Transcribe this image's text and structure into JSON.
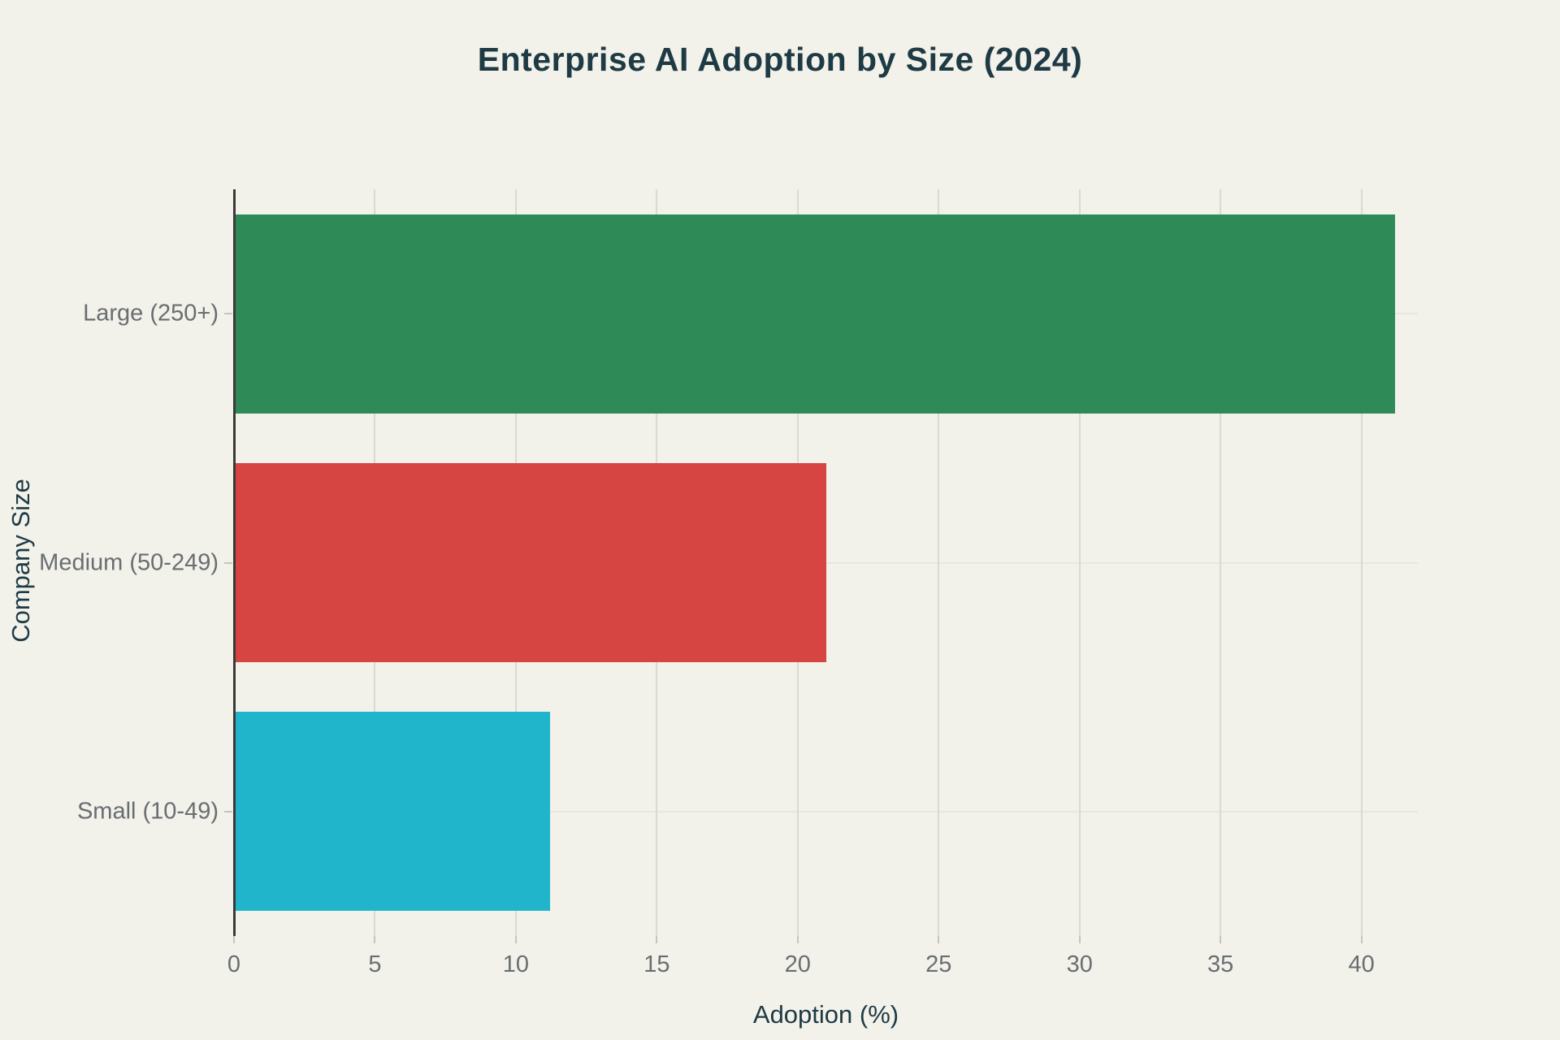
{
  "title": "Enterprise AI Adoption by Size (2024)",
  "chart_data": {
    "type": "bar",
    "orientation": "horizontal",
    "title": "Enterprise AI Adoption by Size (2024)",
    "categories": [
      "Large (250+)",
      "Medium (50-249)",
      "Small (10-49)"
    ],
    "values": [
      41.2,
      21,
      11.2
    ],
    "xlabel": "Adoption (%)",
    "ylabel": "Company Size",
    "xlim": [
      0,
      42
    ],
    "xticks": [
      0,
      5,
      10,
      15,
      20,
      25,
      30,
      35,
      40
    ],
    "grid": true,
    "legend": false,
    "bar_colors": [
      "#2e8b57",
      "#d64541",
      "#20b5cb"
    ]
  },
  "colors": {
    "background": "#f2f1ea",
    "title_text": "#1e3a44",
    "axis_label_text": "#1e3a44",
    "tick_text": "#696e71",
    "grid_vertical": "#dbd9d0",
    "grid_horizontal": "#e8e6dd",
    "axis_line": "#3a3a3a",
    "tick_mark": "#c6c4bc"
  }
}
